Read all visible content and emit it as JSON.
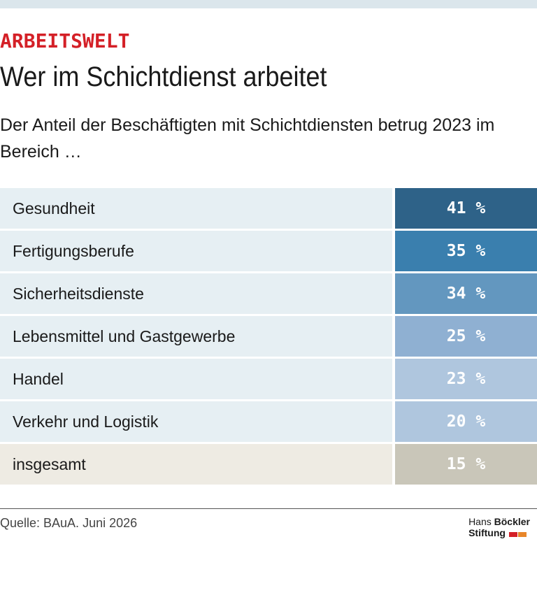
{
  "header": {
    "kicker": "ARBEITSWELT",
    "title": "Wer im Schichtdienst arbeitet",
    "subtitle": "Der Anteil der Beschäftigten mit Schichtdiensten betrug 2023 im Bereich …"
  },
  "table": {
    "rows": [
      {
        "label": "Gesundheit",
        "value": "41 %",
        "color": "#2e6288",
        "background": "#e6eff3"
      },
      {
        "label": "Fertigungsberufe",
        "value": "35 %",
        "color": "#3a7fae",
        "background": "#e6eff3"
      },
      {
        "label": "Sicherheitsdienste",
        "value": "34 %",
        "color": "#6397bf",
        "background": "#e6eff3"
      },
      {
        "label": "Lebensmittel und Gastgewerbe",
        "value": "25 %",
        "color": "#8fb0d2",
        "background": "#e6eff3"
      },
      {
        "label": "Handel",
        "value": "23 %",
        "color": "#afc6de",
        "background": "#e6eff3"
      },
      {
        "label": "Verkehr und Logistik",
        "value": "20 %",
        "color": "#afc6de",
        "background": "#e6eff3"
      },
      {
        "label": "insgesamt",
        "value": "15 %",
        "color": "#c9c6b9",
        "background": "#eeebe3"
      }
    ]
  },
  "footer": {
    "source": "Quelle: BAuA. Juni 2026",
    "logo": {
      "first": "Hans",
      "bold": "Böckler",
      "second": "Stiftung"
    }
  }
}
